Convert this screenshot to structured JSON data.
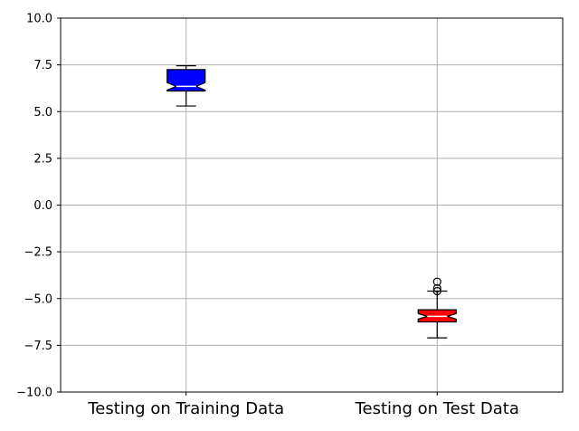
{
  "chart_data": {
    "type": "boxplot",
    "notched": true,
    "grid": true,
    "ylim": [
      -10.0,
      10.0
    ],
    "yticks": [
      "10.0",
      "7.5",
      "5.0",
      "2.5",
      "0.0",
      "−2.5",
      "−5.0",
      "−7.5",
      "−10.0"
    ],
    "ytick_values": [
      10.0,
      7.5,
      5.0,
      2.5,
      0.0,
      -2.5,
      -5.0,
      -7.5,
      -10.0
    ],
    "categories": [
      "Testing on Training Data",
      "Testing on Test Data"
    ],
    "boxes": [
      {
        "whisker_low": 5.3,
        "q1": 6.1,
        "median": 6.35,
        "q3": 7.25,
        "whisker_high": 7.45,
        "notch_low": 6.15,
        "notch_high": 6.55,
        "outliers": [],
        "color": "#0000ff"
      },
      {
        "whisker_low": -7.1,
        "q1": -6.25,
        "median": -5.95,
        "q3": -5.6,
        "whisker_high": -4.6,
        "notch_low": -6.1,
        "notch_high": -5.8,
        "outliers": [
          -4.1,
          -4.45,
          -4.6
        ],
        "color": "#ff0000"
      }
    ],
    "colors": {
      "grid": "#b0b0b0",
      "axes": "#000000",
      "median": "#ffffff"
    }
  }
}
